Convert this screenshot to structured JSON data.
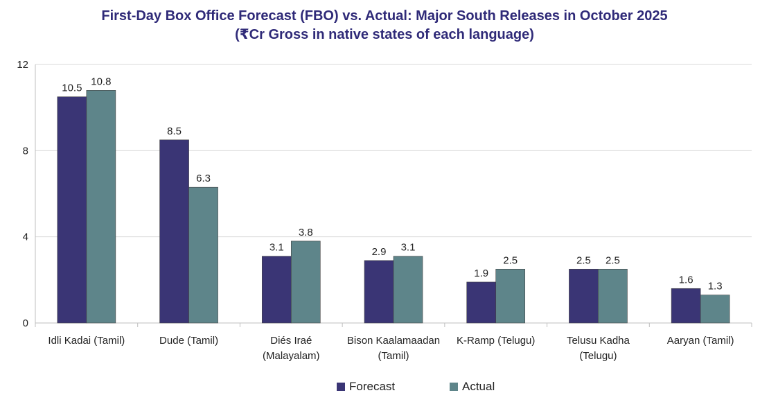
{
  "chart_data": {
    "type": "bar",
    "title_line1": "First-Day Box Office Forecast (FBO) vs. Actual: Major South Releases in October 2025",
    "title_line2": "(₹Cr Gross in native states of each language)",
    "categories": [
      [
        "Idli Kadai (Tamil)"
      ],
      [
        "Dude (Tamil)"
      ],
      [
        "Diés Iraé",
        "(Malayalam)"
      ],
      [
        "Bison Kaalamaadan",
        "(Tamil)"
      ],
      [
        "K-Ramp (Telugu)"
      ],
      [
        "Telusu Kadha",
        "(Telugu)"
      ],
      [
        "Aaryan (Tamil)"
      ]
    ],
    "series": [
      {
        "name": "Forecast",
        "color": "#3a3575",
        "values": [
          10.5,
          8.5,
          3.1,
          2.9,
          1.9,
          2.5,
          1.6
        ]
      },
      {
        "name": "Actual",
        "color": "#5e858a",
        "values": [
          10.8,
          6.3,
          3.8,
          3.1,
          2.5,
          2.5,
          1.3
        ]
      }
    ],
    "ylim": [
      0,
      12
    ],
    "yticks": [
      0,
      4,
      8,
      12
    ],
    "grid": true,
    "legend_position": "bottom-center",
    "xlabel": "",
    "ylabel": ""
  }
}
